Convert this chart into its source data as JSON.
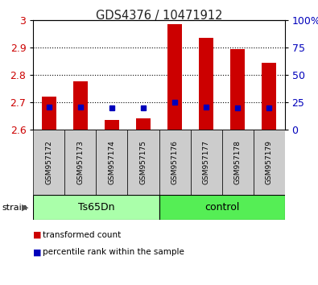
{
  "title": "GDS4376 / 10471912",
  "samples": [
    "GSM957172",
    "GSM957173",
    "GSM957174",
    "GSM957175",
    "GSM957176",
    "GSM957177",
    "GSM957178",
    "GSM957179"
  ],
  "red_values": [
    2.72,
    2.775,
    2.635,
    2.64,
    2.985,
    2.935,
    2.895,
    2.845
  ],
  "blue_values": [
    2.683,
    2.683,
    2.68,
    2.68,
    2.7,
    2.683,
    2.68,
    2.68
  ],
  "y_min": 2.6,
  "y_max": 3.0,
  "y_ticks_left": [
    2.6,
    2.7,
    2.8,
    2.9,
    3.0
  ],
  "y_tick_left_labels": [
    "2.6",
    "2.7",
    "2.8",
    "2.9",
    "3"
  ],
  "y_ticks_right_vals": [
    0,
    25,
    50,
    75,
    100
  ],
  "y_ticks_right_labels": [
    "0",
    "25",
    "50",
    "75",
    "100%"
  ],
  "group1_label": "Ts65Dn",
  "group1_indices": [
    0,
    1,
    2,
    3
  ],
  "group2_label": "control",
  "group2_indices": [
    4,
    5,
    6,
    7
  ],
  "strain_label": "strain",
  "group1_facecolor": "#aaffaa",
  "group2_facecolor": "#55ee55",
  "label_bg_color": "#cccccc",
  "bar_color": "#cc0000",
  "blue_color": "#0000bb",
  "axis_left_color": "#cc0000",
  "axis_right_color": "#0000bb",
  "legend_red_label": "transformed count",
  "legend_blue_label": "percentile rank within the sample",
  "title_color": "#222222",
  "bar_baseline": 2.6,
  "bar_width": 0.45,
  "blue_marker_size": 5
}
